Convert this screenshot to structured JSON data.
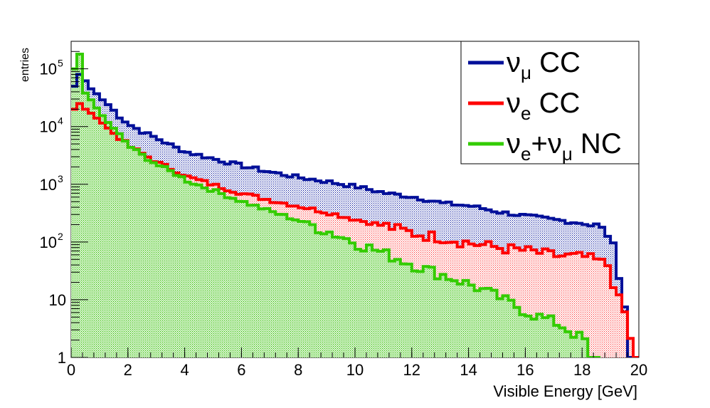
{
  "chart_data": {
    "type": "histogram",
    "xlabel": "Visible Energy [GeV]",
    "ylabel": "entries",
    "xlim": [
      0,
      20
    ],
    "ylim": [
      1,
      300000
    ],
    "yscale": "log",
    "bin_width": 0.2,
    "x_ticks": [
      "0",
      "2",
      "4",
      "6",
      "8",
      "10",
      "12",
      "14",
      "16",
      "18",
      "20"
    ],
    "y_ticks": [
      {
        "value": 1,
        "base": "1",
        "exp": ""
      },
      {
        "value": 10,
        "base": "10",
        "exp": ""
      },
      {
        "value": 100,
        "base": "10",
        "exp": "2"
      },
      {
        "value": 1000,
        "base": "10",
        "exp": "3"
      },
      {
        "value": 10000,
        "base": "10",
        "exp": "4"
      },
      {
        "value": 100000,
        "base": "10",
        "exp": "5"
      }
    ],
    "legend": {
      "position": "top-right",
      "entries": [
        {
          "series": "numu_cc",
          "symbol": "ν",
          "sub": "μ",
          "suffix": " CC"
        },
        {
          "series": "nue_cc",
          "symbol": "ν",
          "sub": "e",
          "suffix": " CC"
        },
        {
          "series": "nc",
          "symbol": "ν",
          "sub": "e",
          "mid": "+ν",
          "sub2": "μ",
          "suffix": " NC"
        }
      ]
    },
    "series": [
      {
        "id": "numu_cc",
        "name": "νμ CC",
        "color": "#000f99",
        "fill": "#6070c0",
        "anchors": [
          [
            0.0,
            50000
          ],
          [
            0.2,
            80000
          ],
          [
            0.4,
            62000
          ],
          [
            0.6,
            45000
          ],
          [
            0.8,
            37000
          ],
          [
            1.0,
            29000
          ],
          [
            1.2,
            24000
          ],
          [
            1.4,
            19000
          ],
          [
            1.6,
            15000
          ],
          [
            1.8,
            12500
          ],
          [
            2.0,
            10500
          ],
          [
            2.4,
            8200
          ],
          [
            3.0,
            6000
          ],
          [
            3.6,
            4300
          ],
          [
            4.0,
            3600
          ],
          [
            5.0,
            2700
          ],
          [
            6.0,
            2050
          ],
          [
            7.0,
            1600
          ],
          [
            8.0,
            1300
          ],
          [
            9.0,
            1100
          ],
          [
            10.0,
            900
          ],
          [
            11.0,
            700
          ],
          [
            12.0,
            600
          ],
          [
            13.0,
            470
          ],
          [
            14.0,
            420
          ],
          [
            15.0,
            330
          ],
          [
            16.0,
            280
          ],
          [
            17.0,
            240
          ],
          [
            18.0,
            210
          ],
          [
            18.4,
            190
          ],
          [
            18.8,
            140
          ],
          [
            19.0,
            80
          ],
          [
            19.2,
            30
          ],
          [
            19.4,
            8
          ],
          [
            19.6,
            1
          ],
          [
            19.8,
            1
          ]
        ]
      },
      {
        "id": "nue_cc",
        "name": "νe CC",
        "color": "#ff0000",
        "fill": "#ff9090",
        "anchors": [
          [
            0.0,
            20000
          ],
          [
            0.2,
            25000
          ],
          [
            0.4,
            20000
          ],
          [
            0.6,
            17000
          ],
          [
            0.8,
            14000
          ],
          [
            1.0,
            11500
          ],
          [
            1.2,
            9300
          ],
          [
            1.4,
            7700
          ],
          [
            1.6,
            6400
          ],
          [
            1.8,
            5300
          ],
          [
            2.0,
            4400
          ],
          [
            2.4,
            3400
          ],
          [
            3.0,
            2300
          ],
          [
            3.6,
            1700
          ],
          [
            4.0,
            1350
          ],
          [
            5.0,
            950
          ],
          [
            6.0,
            680
          ],
          [
            7.0,
            520
          ],
          [
            8.0,
            410
          ],
          [
            9.0,
            320
          ],
          [
            10.0,
            240
          ],
          [
            11.0,
            190
          ],
          [
            12.0,
            140
          ],
          [
            13.0,
            120
          ],
          [
            14.0,
            95
          ],
          [
            15.0,
            80
          ],
          [
            16.0,
            70
          ],
          [
            17.0,
            58
          ],
          [
            18.0,
            55
          ],
          [
            18.4,
            48
          ],
          [
            18.8,
            40
          ],
          [
            19.0,
            20
          ],
          [
            19.2,
            10
          ],
          [
            19.4,
            6
          ],
          [
            19.6,
            2
          ],
          [
            19.8,
            1
          ]
        ]
      },
      {
        "id": "nc",
        "name": "νe+νμ NC",
        "color": "#33cc00",
        "fill": "#a8e6a0",
        "anchors": [
          [
            0.0,
            100000
          ],
          [
            0.2,
            180000
          ],
          [
            0.4,
            38000
          ],
          [
            0.6,
            29000
          ],
          [
            0.8,
            21000
          ],
          [
            1.0,
            15500
          ],
          [
            1.2,
            12000
          ],
          [
            1.4,
            9000
          ],
          [
            1.6,
            7200
          ],
          [
            1.8,
            5600
          ],
          [
            2.0,
            4400
          ],
          [
            2.4,
            3200
          ],
          [
            3.0,
            2100
          ],
          [
            3.6,
            1500
          ],
          [
            4.0,
            1150
          ],
          [
            5.0,
            750
          ],
          [
            6.0,
            490
          ],
          [
            7.0,
            330
          ],
          [
            8.0,
            230
          ],
          [
            9.0,
            150
          ],
          [
            10.0,
            95
          ],
          [
            11.0,
            62
          ],
          [
            12.0,
            40
          ],
          [
            13.0,
            27
          ],
          [
            14.0,
            18
          ],
          [
            15.0,
            11
          ],
          [
            16.0,
            6
          ],
          [
            17.0,
            4
          ],
          [
            18.0,
            2
          ],
          [
            18.2,
            1
          ],
          [
            18.4,
            1
          ],
          [
            19.0,
            0.5
          ],
          [
            19.8,
            0.5
          ]
        ]
      }
    ]
  }
}
